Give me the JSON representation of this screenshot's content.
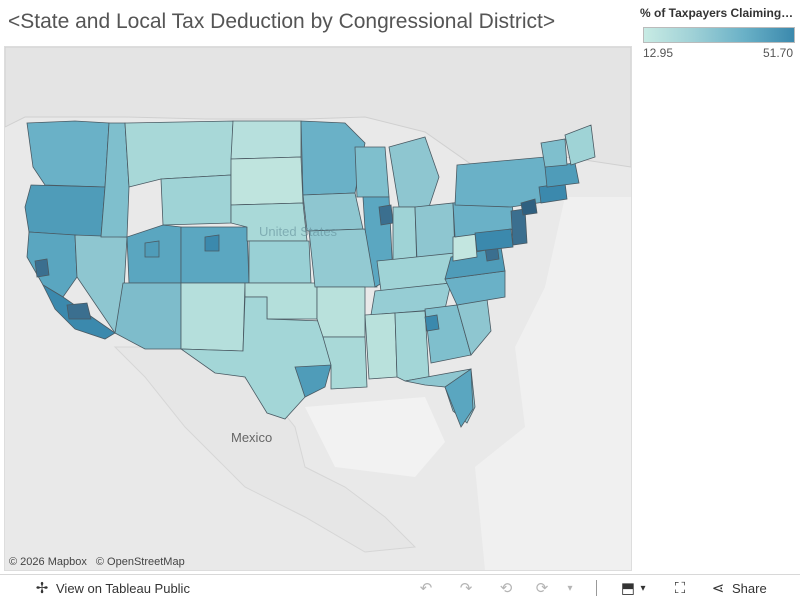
{
  "title": "<State and Local Tax Deduction by Congressional District>",
  "legend": {
    "title": "% of Taxpayers Claiming S...",
    "min": "12.95",
    "max": "51.70",
    "colors": [
      "#c8ebe4",
      "#9ed0d6",
      "#6ab1c7",
      "#3b89ad"
    ]
  },
  "map": {
    "labels": {
      "mexico": "Mexico",
      "usa": "United States"
    },
    "attribution": {
      "mapbox": "© 2026 Mapbox",
      "osm": "© OpenStreetMap"
    },
    "land_color": "#e9e9e9",
    "district_stroke": "#4a5a63"
  },
  "toolbar": {
    "view_label": "View on Tableau Public",
    "share_label": "Share",
    "icons": [
      "tableau-logo-icon",
      "undo-icon",
      "redo-icon",
      "revert-icon",
      "refresh-icon",
      "pause-icon",
      "download-icon",
      "fullscreen-icon",
      "share-icon"
    ]
  }
}
